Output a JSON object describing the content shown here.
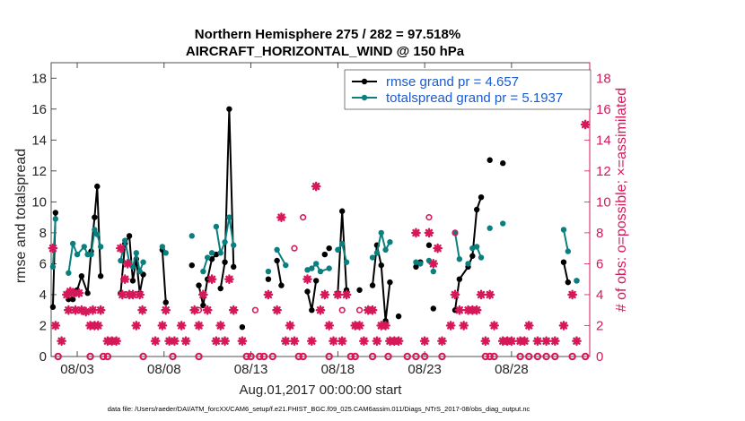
{
  "chart_data": {
    "type": "line",
    "title_line1": "Northern Hemisphere 275 / 282 = 97.518%",
    "title_line2": "AIRCRAFT_HORIZONTAL_WIND @ 150 hPa",
    "xlabel": "Aug.01,2017 00:00:00 start",
    "ylabel_left": "rmse and totalspread",
    "ylabel_right": "# of obs: o=possible; ×=assimilated",
    "footer": "data file: /Users/raeder/DAI/ATM_forcXX/CAM6_setup/f.e21.FHIST_BGC.f09_025.CAM6assim.011/Diags_NTrS_2017-08/obs_diag_output.nc",
    "xlim": [
      1.5,
      32.5
    ],
    "ylim_left": [
      0,
      19
    ],
    "ylim_right": [
      0,
      19
    ],
    "x_ticks": [
      3,
      8,
      13,
      18,
      23,
      28
    ],
    "x_tick_labels": [
      "08/03",
      "08/08",
      "08/13",
      "08/18",
      "08/23",
      "08/28"
    ],
    "y_ticks_left": [
      0,
      2,
      4,
      6,
      8,
      10,
      12,
      14,
      16,
      18
    ],
    "y_ticks_right": [
      0,
      2,
      4,
      6,
      8,
      10,
      12,
      14,
      16,
      18
    ],
    "colors": {
      "rmse": "#000000",
      "spread": "#0a7f7f",
      "obs": "#d6185a",
      "legend_text": "#1a5bd6",
      "axis_right": "#d6185a"
    },
    "legend": [
      {
        "name": "rmse grand pr = 4.657",
        "series": "rmse"
      },
      {
        "name": "totalspread grand pr = 5.1937",
        "series": "spread"
      }
    ],
    "series": [
      {
        "name": "rmse",
        "points": [
          [
            1.6,
            3.2
          ],
          [
            1.75,
            9.3
          ],
          [
            2.5,
            3.7
          ],
          [
            2.75,
            3.7
          ],
          [
            3,
            4.3
          ],
          [
            3.25,
            5.2
          ],
          [
            3.6,
            4.1
          ],
          [
            3.8,
            6.8
          ],
          [
            4,
            9.0
          ],
          [
            4.15,
            11.0
          ],
          [
            4.35,
            5.2
          ],
          [
            5.5,
            4.1
          ],
          [
            5.75,
            7.3
          ],
          [
            6,
            7.8
          ],
          [
            6.2,
            4.9
          ],
          [
            6.4,
            6.3
          ],
          [
            6.6,
            4.1
          ],
          [
            6.8,
            5.3
          ],
          [
            7.9,
            6.9
          ],
          [
            8.1,
            3.5
          ],
          [
            9.6,
            5.9
          ],
          [
            10,
            4.6
          ],
          [
            10.25,
            3.3
          ],
          [
            10.5,
            5.0
          ],
          [
            10.75,
            6.3
          ],
          [
            11,
            6.6
          ],
          [
            11.25,
            4.4
          ],
          [
            11.5,
            6.1
          ],
          [
            11.75,
            16.0
          ],
          [
            12,
            5.8
          ],
          [
            12.5,
            1.9
          ],
          [
            14,
            5.0
          ],
          [
            14.5,
            6.2
          ],
          [
            14.75,
            4.6
          ],
          [
            16.25,
            4.2
          ],
          [
            16.5,
            3.0
          ],
          [
            16.75,
            4.9
          ],
          [
            17.25,
            6.6
          ],
          [
            17.5,
            7.0
          ],
          [
            18,
            4.1
          ],
          [
            18.25,
            9.4
          ],
          [
            18.5,
            4.3
          ],
          [
            19.25,
            4.3
          ],
          [
            20,
            4.6
          ],
          [
            20.25,
            7.2
          ],
          [
            20.5,
            5.9
          ],
          [
            20.75,
            2.3
          ],
          [
            21,
            4.8
          ],
          [
            21.5,
            2.6
          ],
          [
            22.5,
            5.8
          ],
          [
            22.75,
            6.1
          ],
          [
            23.25,
            7.2
          ],
          [
            23.5,
            3.1
          ],
          [
            24.75,
            3.0
          ],
          [
            25,
            5.0
          ],
          [
            25.5,
            5.8
          ],
          [
            25.75,
            6.5
          ],
          [
            26,
            9.5
          ],
          [
            26.25,
            10.3
          ],
          [
            26.75,
            12.7
          ],
          [
            27.5,
            12.5
          ],
          [
            31,
            6.1
          ],
          [
            31.25,
            4.8
          ],
          [
            31.75,
            4.9
          ]
        ],
        "segments": [
          [
            1.6,
            1.75
          ],
          [
            2.5,
            4.35
          ],
          [
            5.5,
            6.8
          ],
          [
            7.9,
            8.1
          ],
          [
            10,
            11
          ],
          [
            11.25,
            12
          ],
          [
            14.5,
            14.75
          ],
          [
            16.25,
            16.75
          ],
          [
            18,
            18.5
          ],
          [
            20,
            21
          ],
          [
            22.5,
            22.75
          ],
          [
            24.75,
            26.25
          ],
          [
            31,
            31.25
          ]
        ]
      },
      {
        "name": "totalspread",
        "points": [
          [
            1.6,
            5.8
          ],
          [
            1.75,
            8.9
          ],
          [
            2.5,
            5.4
          ],
          [
            2.75,
            7.3
          ],
          [
            3,
            6.6
          ],
          [
            3.4,
            7.1
          ],
          [
            3.6,
            6.6
          ],
          [
            3.8,
            6.6
          ],
          [
            4,
            8.2
          ],
          [
            4.15,
            7.9
          ],
          [
            4.35,
            7.1
          ],
          [
            5.5,
            6.2
          ],
          [
            5.75,
            7.5
          ],
          [
            6,
            6.1
          ],
          [
            6.2,
            5.8
          ],
          [
            6.4,
            6.7
          ],
          [
            6.6,
            5.5
          ],
          [
            6.8,
            6.1
          ],
          [
            7.9,
            7.1
          ],
          [
            8.1,
            6.7
          ],
          [
            9.6,
            7.8
          ],
          [
            10.25,
            5.5
          ],
          [
            10.5,
            6.4
          ],
          [
            10.75,
            6.7
          ],
          [
            11,
            8.4
          ],
          [
            11.25,
            6.7
          ],
          [
            11.5,
            7.4
          ],
          [
            11.75,
            9.0
          ],
          [
            12,
            7.2
          ],
          [
            14,
            5.5
          ],
          [
            14.5,
            6.9
          ],
          [
            15,
            5.9
          ],
          [
            16.25,
            5.6
          ],
          [
            16.5,
            5.7
          ],
          [
            16.75,
            6.0
          ],
          [
            17,
            5.5
          ],
          [
            17.5,
            5.7
          ],
          [
            18,
            6.9
          ],
          [
            18.25,
            7.3
          ],
          [
            18.5,
            6.1
          ],
          [
            20,
            6.4
          ],
          [
            20.25,
            6.7
          ],
          [
            20.5,
            8.0
          ],
          [
            20.75,
            6.9
          ],
          [
            21,
            7.4
          ],
          [
            22.5,
            6.1
          ],
          [
            22.75,
            6.0
          ],
          [
            23.25,
            6.2
          ],
          [
            23.5,
            5.5
          ],
          [
            24.75,
            8.0
          ],
          [
            25,
            6.3
          ],
          [
            25.5,
            6.0
          ],
          [
            25.75,
            7.0
          ],
          [
            26,
            7.1
          ],
          [
            26.25,
            6.4
          ],
          [
            26.75,
            8.3
          ],
          [
            27.5,
            8.6
          ],
          [
            31,
            8.2
          ],
          [
            31.25,
            6.8
          ],
          [
            31.75,
            4.9
          ]
        ],
        "segments": [
          [
            1.6,
            1.75
          ],
          [
            2.5,
            4.35
          ],
          [
            5.5,
            6.8
          ],
          [
            7.9,
            8.1
          ],
          [
            10.25,
            10.5
          ],
          [
            11,
            12
          ],
          [
            14.5,
            15
          ],
          [
            16.25,
            17.5
          ],
          [
            18,
            18.5
          ],
          [
            20.25,
            21
          ],
          [
            22.5,
            22.75
          ],
          [
            24.75,
            25
          ],
          [
            25.75,
            26.25
          ],
          [
            31,
            31.25
          ]
        ]
      }
    ],
    "obs_assimilated": [
      [
        1.6,
        7.0
      ],
      [
        1.75,
        2.0
      ],
      [
        2.1,
        1.0
      ],
      [
        2.4,
        4.0
      ],
      [
        2.5,
        3.0
      ],
      [
        2.6,
        4.2
      ],
      [
        2.8,
        4.1
      ],
      [
        2.9,
        3.0
      ],
      [
        3.1,
        4.1
      ],
      [
        3.25,
        3.0
      ],
      [
        3.5,
        2.9
      ],
      [
        3.75,
        2.0
      ],
      [
        3.9,
        3.0
      ],
      [
        4.0,
        2.0
      ],
      [
        4.2,
        2.0
      ],
      [
        4.35,
        3.0
      ],
      [
        4.75,
        1.0
      ],
      [
        5.0,
        1.0
      ],
      [
        5.25,
        1.0
      ],
      [
        5.5,
        7.0
      ],
      [
        5.6,
        4.0
      ],
      [
        5.75,
        5.0
      ],
      [
        5.9,
        6.0
      ],
      [
        6.0,
        4.0
      ],
      [
        6.2,
        4.0
      ],
      [
        6.4,
        2.0
      ],
      [
        6.6,
        4.0
      ],
      [
        6.75,
        3.0
      ],
      [
        7.5,
        1.0
      ],
      [
        7.9,
        2.0
      ],
      [
        8.1,
        3.0
      ],
      [
        8.3,
        1.0
      ],
      [
        8.6,
        1.0
      ],
      [
        9.0,
        2.0
      ],
      [
        9.25,
        1.0
      ],
      [
        9.75,
        3.0
      ],
      [
        10.0,
        2.0
      ],
      [
        10.25,
        4.0
      ],
      [
        10.5,
        3.0
      ],
      [
        10.75,
        5.0
      ],
      [
        11.0,
        1.0
      ],
      [
        11.25,
        2.0
      ],
      [
        11.5,
        1.0
      ],
      [
        11.75,
        5.0
      ],
      [
        12.0,
        3.0
      ],
      [
        12.5,
        1.0
      ],
      [
        14.0,
        4.0
      ],
      [
        14.5,
        3.0
      ],
      [
        14.75,
        9.0
      ],
      [
        15.0,
        1.0
      ],
      [
        15.25,
        2.0
      ],
      [
        15.5,
        1.0
      ],
      [
        16.25,
        5.0
      ],
      [
        16.5,
        1.0
      ],
      [
        16.75,
        11.0
      ],
      [
        17.0,
        3.0
      ],
      [
        17.25,
        4.0
      ],
      [
        17.5,
        2.0
      ],
      [
        17.75,
        1.0
      ],
      [
        18.0,
        4.0
      ],
      [
        18.25,
        1.0
      ],
      [
        18.5,
        4.0
      ],
      [
        19.0,
        2.0
      ],
      [
        19.25,
        2.0
      ],
      [
        19.5,
        1.0
      ],
      [
        19.75,
        3.0
      ],
      [
        20.0,
        3.0
      ],
      [
        20.25,
        1.0
      ],
      [
        20.5,
        2.0
      ],
      [
        20.75,
        2.0
      ],
      [
        21.0,
        1.0
      ],
      [
        21.25,
        1.0
      ],
      [
        21.5,
        1.0
      ],
      [
        22.5,
        8.0
      ],
      [
        23.0,
        1.0
      ],
      [
        23.25,
        8.0
      ],
      [
        23.5,
        6.0
      ],
      [
        23.75,
        7.0
      ],
      [
        24.0,
        1.0
      ],
      [
        24.5,
        2.0
      ],
      [
        24.75,
        4.0
      ],
      [
        25.0,
        3.0
      ],
      [
        25.25,
        2.0
      ],
      [
        25.5,
        3.0
      ],
      [
        25.75,
        3.0
      ],
      [
        26.0,
        3.0
      ],
      [
        26.25,
        4.0
      ],
      [
        26.5,
        1.0
      ],
      [
        26.75,
        4.0
      ],
      [
        27.0,
        2.0
      ],
      [
        27.5,
        1.0
      ],
      [
        27.75,
        1.0
      ],
      [
        28.0,
        1.0
      ],
      [
        28.5,
        1.0
      ],
      [
        28.75,
        1.0
      ],
      [
        29.0,
        2.0
      ],
      [
        29.5,
        1.0
      ],
      [
        30.0,
        1.0
      ],
      [
        30.5,
        1.0
      ],
      [
        31.0,
        2.0
      ],
      [
        31.5,
        4.0
      ],
      [
        31.75,
        1.0
      ],
      [
        32.25,
        15.0
      ]
    ],
    "obs_zero": [
      [
        1.9,
        0
      ],
      [
        3.75,
        0
      ],
      [
        4.5,
        0
      ],
      [
        4.75,
        0
      ],
      [
        6.8,
        0
      ],
      [
        8.5,
        0
      ],
      [
        10.0,
        0
      ],
      [
        12.75,
        0
      ],
      [
        13.0,
        0
      ],
      [
        13.5,
        0
      ],
      [
        13.75,
        0
      ],
      [
        14.25,
        0
      ],
      [
        15.75,
        0
      ],
      [
        16.0,
        0
      ],
      [
        17.5,
        0
      ],
      [
        18.75,
        0
      ],
      [
        19.0,
        0
      ],
      [
        20.0,
        0
      ],
      [
        20.9,
        0
      ],
      [
        22.0,
        0
      ],
      [
        22.5,
        0
      ],
      [
        23.0,
        0
      ],
      [
        24.0,
        0
      ],
      [
        26.5,
        0
      ],
      [
        26.75,
        0
      ],
      [
        27.0,
        0
      ],
      [
        28.5,
        0
      ],
      [
        29.0,
        0
      ],
      [
        29.5,
        0
      ],
      [
        30.0,
        0
      ],
      [
        30.5,
        0
      ],
      [
        31.5,
        0
      ],
      [
        32.25,
        0
      ]
    ],
    "obs_possible": [
      [
        10.0,
        3.0
      ],
      [
        12.0,
        3.0
      ],
      [
        13.25,
        3.0
      ],
      [
        15.5,
        7.0
      ],
      [
        16.0,
        9.0
      ],
      [
        18.25,
        3.0
      ],
      [
        19.25,
        3.0
      ],
      [
        23.25,
        9.0
      ],
      [
        24.75,
        8.0
      ]
    ]
  }
}
